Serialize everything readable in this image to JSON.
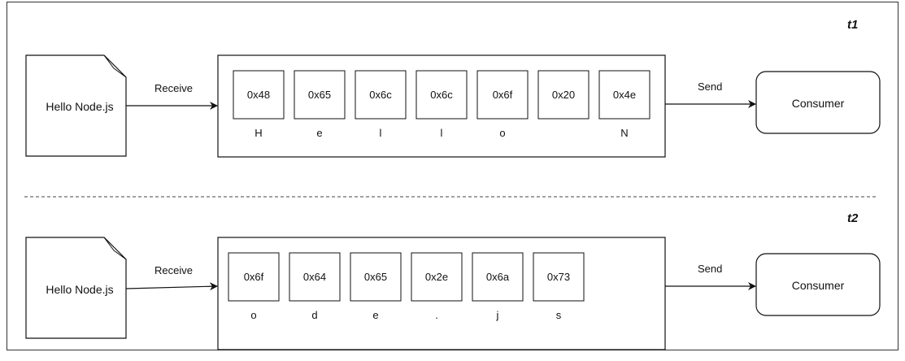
{
  "stages": [
    {
      "label": "t1",
      "source": "Hello Node.js",
      "receive_label": "Receive",
      "send_label": "Send",
      "consumer": "Consumer",
      "cells": [
        {
          "hex": "0x48",
          "char": "H"
        },
        {
          "hex": "0x65",
          "char": "e"
        },
        {
          "hex": "0x6c",
          "char": "l"
        },
        {
          "hex": "0x6c",
          "char": "l"
        },
        {
          "hex": "0x6f",
          "char": "o"
        },
        {
          "hex": "0x20",
          "char": ""
        },
        {
          "hex": "0x4e",
          "char": "N"
        }
      ]
    },
    {
      "label": "t2",
      "source": "Hello Node.js",
      "receive_label": "Receive",
      "send_label": "Send",
      "consumer": "Consumer",
      "cells": [
        {
          "hex": "0x6f",
          "char": "o"
        },
        {
          "hex": "0x64",
          "char": "d"
        },
        {
          "hex": "0x65",
          "char": "e"
        },
        {
          "hex": "0x2e",
          "char": "."
        },
        {
          "hex": "0x6a",
          "char": "j"
        },
        {
          "hex": "0x73",
          "char": "s"
        }
      ]
    }
  ]
}
